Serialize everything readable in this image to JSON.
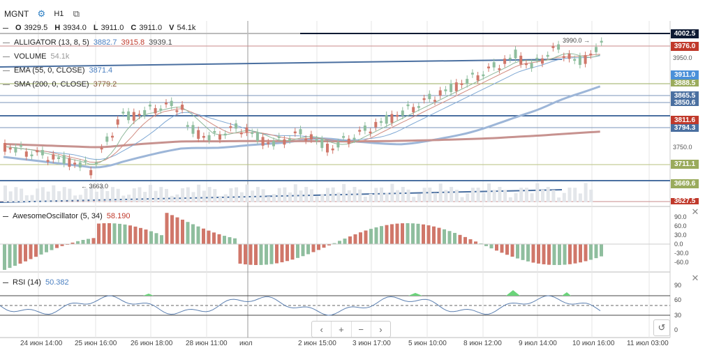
{
  "header": {
    "symbol": "MGNT",
    "timeframe": "H1",
    "ohlcv": [
      {
        "k": "O",
        "v": "3929.5"
      },
      {
        "k": "H",
        "v": "3934.0"
      },
      {
        "k": "L",
        "v": "3911.0"
      },
      {
        "k": "C",
        "v": "3911.0"
      },
      {
        "k": "V",
        "v": "54.1k"
      }
    ]
  },
  "legends": {
    "alligator": {
      "label": "ALLIGATOR (13, 8, 5)",
      "v1": "3882.7",
      "v2": "3915.8",
      "v3": "3939.1"
    },
    "volume": {
      "label": "VOLUME",
      "value": "54.1k"
    },
    "ema": {
      "label": "EMA (55, 0, CLOSE)",
      "value": "3871.4"
    },
    "sma": {
      "label": "SMA (200, 0, CLOSE)",
      "value": "3779.2"
    }
  },
  "price_axis": {
    "ticks": [
      "3950.0",
      "3750.0"
    ],
    "badges": [
      {
        "text": "4002.5",
        "color": "#0e1a33"
      },
      {
        "text": "3976.0",
        "color": "#c0392b"
      },
      {
        "text": "3911.0",
        "color": "#4a90d9"
      },
      {
        "text": "3888.5",
        "color": "#9aab5c"
      },
      {
        "text": "3865.5",
        "color": "#4a6fa0"
      },
      {
        "text": "3850.6",
        "color": "#4a6fa0"
      },
      {
        "text": "3811.6",
        "color": "#c0392b"
      },
      {
        "text": "3794.3",
        "color": "#4a6fa0"
      },
      {
        "text": "3711.1",
        "color": "#9aab5c"
      },
      {
        "text": "3669.6",
        "color": "#9aab5c"
      },
      {
        "text": "3627.5",
        "color": "#c0392b"
      }
    ],
    "annotations": {
      "high": "3990.0",
      "low": "3663.0"
    }
  },
  "ao": {
    "label": "AwesomeOscillator (5, 34)",
    "value": "58.190",
    "ticks": [
      "90.0",
      "60.0",
      "30.0",
      "0.0",
      "-30.0",
      "-60.0"
    ]
  },
  "rsi": {
    "label": "RSI (14)",
    "value": "50.382",
    "ticks": [
      "90",
      "60",
      "30",
      "0"
    ]
  },
  "x_axis": [
    "24 июн 14:00",
    "25 июн 16:00",
    "26 июн 18:00",
    "28 июн 11:00",
    "июл",
    "2 июн 15:00",
    "3 июн 17:00",
    "5 июн 10:00",
    "8 июн 12:00",
    "9 июл 14:00",
    "10 июл 16:00",
    "11 июл 03:00"
  ],
  "nav": {
    "prev": "‹",
    "zoom_in": "+",
    "zoom_out": "−",
    "next": "›",
    "reset": "↺"
  },
  "colors": {
    "up": "#8fbe9e",
    "down": "#d0776a",
    "grid": "#e6e6e6",
    "accent": "#2f80c4"
  }
}
